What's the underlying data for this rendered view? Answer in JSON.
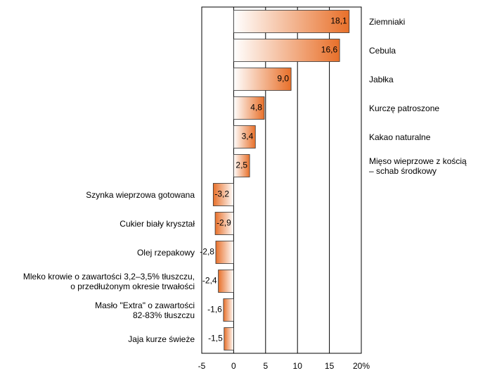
{
  "chart_data": {
    "type": "bar",
    "orientation": "horizontal",
    "categories": [
      "Ziemniaki",
      "Cebula",
      "Jabłka",
      "Kurczę patroszone",
      "Kakao naturalne",
      "Mięso wieprzowe z kością\n– schab środkowy",
      "Szynka wieprzowa gotowana",
      "Cukier biały kryształ",
      "Olej rzepakowy",
      "Mleko krowie o zawartości 3,2–3,5% tłuszczu,\no przedłużonym okresie trwałości",
      "Masło \"Extra\" o zawartości\n82-83% tłuszczu",
      "Jaja kurze świeże"
    ],
    "values": [
      18.1,
      16.6,
      9.0,
      4.8,
      3.4,
      2.5,
      -3.2,
      -2.9,
      -2.8,
      -2.4,
      -1.6,
      -1.5
    ],
    "value_labels": [
      "18,1",
      "16,6",
      "9,0",
      "4,8",
      "3,4",
      "2,5",
      "-3,2",
      "-2,9",
      "-2,8",
      "-2,4",
      "-1,6",
      "-1,5"
    ],
    "color": "#e8702a",
    "xlim": [
      -5,
      20
    ],
    "xticks": [
      -5,
      0,
      5,
      10,
      15,
      {
        "value": 20,
        "label": "20%"
      }
    ],
    "grid": true
  }
}
